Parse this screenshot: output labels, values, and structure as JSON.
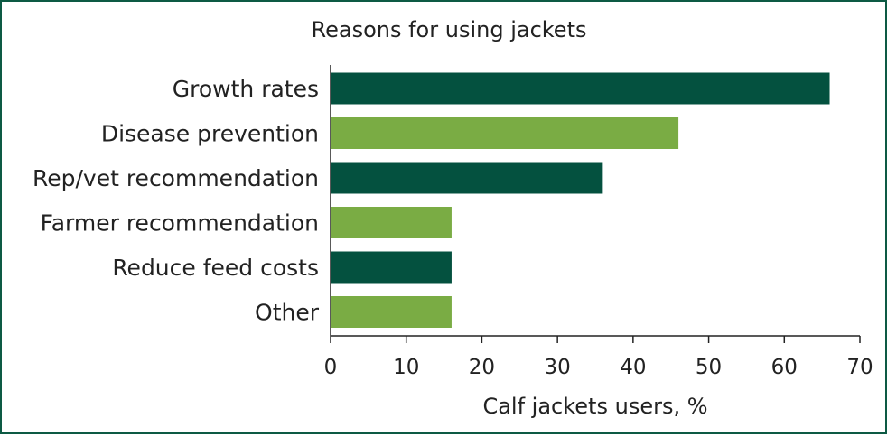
{
  "chart_data": {
    "type": "bar",
    "orientation": "horizontal",
    "title": "Reasons for using jackets",
    "xlabel": "Calf jackets users, %",
    "ylabel": "",
    "categories": [
      "Growth rates",
      "Disease prevention",
      "Rep/vet recommendation",
      "Farmer recommendation",
      "Reduce feed costs",
      "Other"
    ],
    "values": [
      66,
      46,
      36,
      16,
      16,
      16
    ],
    "xlim": [
      0,
      70
    ],
    "xticks": [
      "0",
      "10",
      "20",
      "30",
      "40",
      "50",
      "60",
      "70"
    ],
    "bar_colors": [
      "#04513f",
      "#7aac44",
      "#04513f",
      "#7aac44",
      "#04513f",
      "#7aac44"
    ],
    "grid": false,
    "legend": "none"
  },
  "colors": {
    "frame": "#0d5a44",
    "dark_green": "#04513f",
    "light_green": "#7aac44"
  }
}
